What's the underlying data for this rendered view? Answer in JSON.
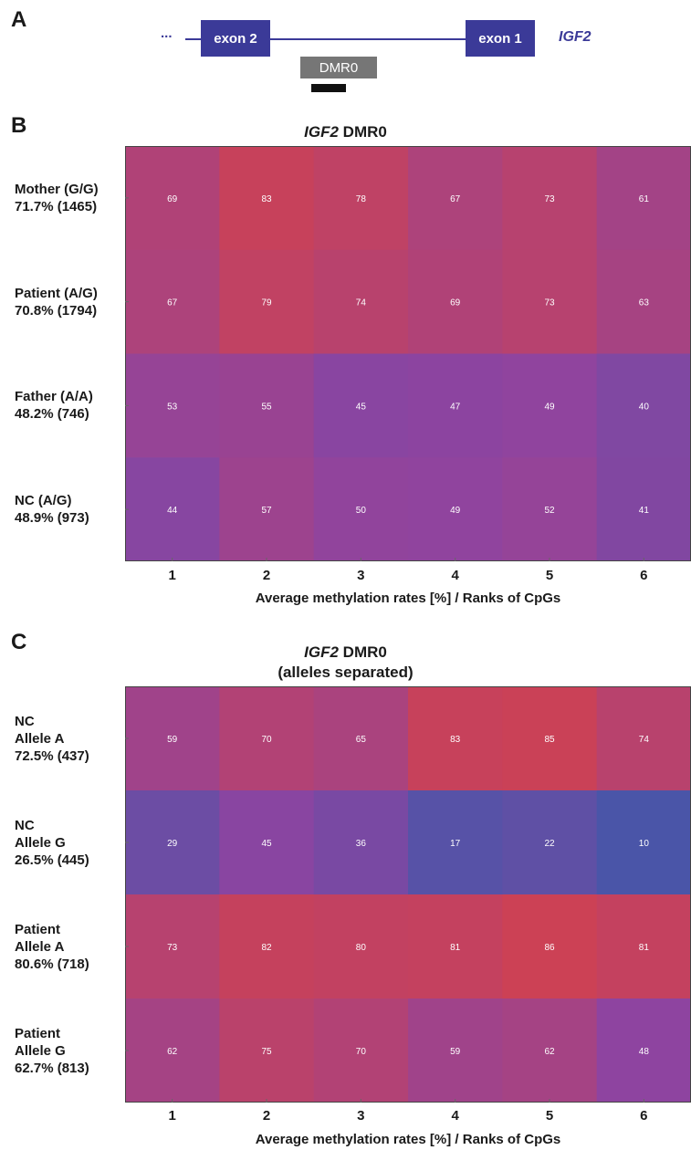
{
  "panel_a": {
    "letter": "A",
    "ellipsis": "...",
    "exon2_label": "exon 2",
    "exon1_label": "exon 1",
    "gene_label": "IGF2",
    "dmr_label": "DMR0"
  },
  "chart_data": [
    {
      "type": "heatmap",
      "panel": "B",
      "title_gene": "IGF2",
      "title_rest": " DMR0",
      "title_line2": "",
      "rows": [
        "Mother (G/G)\n71.7% (1465)",
        "Patient (A/G)\n70.8% (1794)",
        "Father (A/A)\n48.2% (746)",
        "NC (A/G)\n48.9% (973)"
      ],
      "columns": [
        "1",
        "2",
        "3",
        "4",
        "5",
        "6"
      ],
      "values": [
        [
          69,
          83,
          78,
          67,
          73,
          61
        ],
        [
          67,
          79,
          74,
          69,
          73,
          63
        ],
        [
          53,
          55,
          45,
          47,
          49,
          40
        ],
        [
          44,
          57,
          50,
          49,
          52,
          41
        ]
      ],
      "xlabel": "Average methylation rates [%] / Ranks of CpGs",
      "color_scale": {
        "low": "#4a55a8",
        "mid": "#8e44a0",
        "high": "#cc4155",
        "range": [
          10,
          86
        ]
      }
    },
    {
      "type": "heatmap",
      "panel": "C",
      "title_gene": "IGF2",
      "title_rest": " DMR0",
      "title_line2": "(alleles separated)",
      "rows": [
        "NC\nAllele A\n72.5% (437)",
        "NC\nAllele G\n26.5% (445)",
        "Patient\nAllele A\n80.6% (718)",
        "Patient\nAllele G\n62.7% (813)"
      ],
      "columns": [
        "1",
        "2",
        "3",
        "4",
        "5",
        "6"
      ],
      "values": [
        [
          59,
          70,
          65,
          83,
          85,
          74
        ],
        [
          29,
          45,
          36,
          17,
          22,
          10
        ],
        [
          73,
          82,
          80,
          81,
          86,
          81
        ],
        [
          62,
          75,
          70,
          59,
          62,
          48
        ]
      ],
      "xlabel": "Average methylation rates [%] / Ranks of CpGs",
      "color_scale": {
        "low": "#4a55a8",
        "mid": "#8e44a0",
        "high": "#cc4155",
        "range": [
          10,
          86
        ]
      }
    }
  ]
}
